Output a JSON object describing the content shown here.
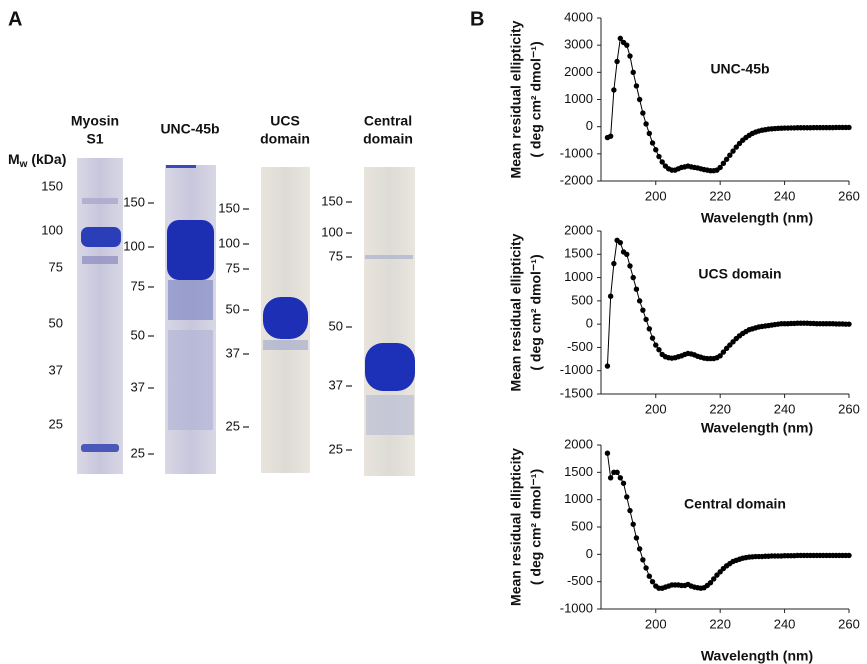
{
  "panel_a": {
    "label": "A",
    "mw_label": "M",
    "mw_sub": "w",
    "mw_unit": " (kDa)",
    "gels": [
      {
        "title": [
          "Myosin",
          "S1"
        ],
        "markers": [
          150,
          100,
          75,
          50,
          37,
          25
        ]
      },
      {
        "title": [
          "UNC-45b"
        ],
        "markers": [
          150,
          100,
          75,
          50,
          37,
          25
        ]
      },
      {
        "title": [
          "UCS",
          "domain"
        ],
        "markers": [
          150,
          100,
          75,
          50,
          37,
          25
        ]
      },
      {
        "title": [
          "Central",
          "domain"
        ],
        "markers": [
          150,
          100,
          75,
          50,
          37,
          25
        ]
      }
    ]
  },
  "panel_b": {
    "label": "B"
  },
  "chart_data": [
    {
      "type": "line",
      "xlabel": "Wavelength (nm)",
      "ylabel": [
        "Mean residual ellipticity",
        "( deg cm² dmol⁻¹)"
      ],
      "xlim": [
        183,
        260
      ],
      "xticks": [
        200,
        220,
        240,
        260
      ],
      "ylim": [
        -2000,
        4000
      ],
      "yticks": [
        -2000,
        -1000,
        0,
        1000,
        2000,
        3000,
        4000
      ],
      "markers": true,
      "x": [
        185,
        186,
        187,
        188,
        189,
        190,
        191,
        192,
        193,
        194,
        195,
        196,
        197,
        198,
        199,
        200,
        201,
        202,
        203,
        204,
        205,
        206,
        207,
        208,
        209,
        210,
        211,
        212,
        213,
        214,
        215,
        216,
        217,
        218,
        219,
        220,
        221,
        222,
        223,
        224,
        225,
        226,
        227,
        228,
        229,
        230,
        231,
        232,
        233,
        234,
        235,
        236,
        237,
        238,
        239,
        240,
        241,
        242,
        243,
        244,
        245,
        246,
        247,
        248,
        249,
        250,
        251,
        252,
        253,
        254,
        255,
        256,
        257,
        258,
        259,
        260
      ],
      "series": [
        {
          "name": "UNC-45b",
          "color": "#000000",
          "values": [
            -400,
            -350,
            1350,
            2400,
            3250,
            3100,
            3000,
            2600,
            2000,
            1500,
            1000,
            500,
            100,
            -250,
            -600,
            -850,
            -1100,
            -1300,
            -1450,
            -1550,
            -1600,
            -1600,
            -1550,
            -1500,
            -1480,
            -1450,
            -1480,
            -1500,
            -1520,
            -1550,
            -1580,
            -1600,
            -1620,
            -1620,
            -1600,
            -1500,
            -1350,
            -1200,
            -1050,
            -900,
            -750,
            -620,
            -500,
            -400,
            -320,
            -250,
            -200,
            -160,
            -130,
            -110,
            -90,
            -80,
            -70,
            -60,
            -55,
            -50,
            -50,
            -45,
            -45,
            -40,
            -40,
            -40,
            -40,
            -40,
            -35,
            -35,
            -35,
            -35,
            -35,
            -35,
            -35,
            -30,
            -30,
            -30,
            -30,
            -30
          ]
        }
      ]
    },
    {
      "type": "line",
      "xlabel": "Wavelength (nm)",
      "ylabel": [
        "Mean residual ellipticity",
        "( deg cm² dmol⁻¹)"
      ],
      "xlim": [
        183,
        260
      ],
      "xticks": [
        200,
        220,
        240,
        260
      ],
      "ylim": [
        -1500,
        2000
      ],
      "yticks": [
        -1500,
        -1000,
        -500,
        0,
        500,
        1000,
        1500,
        2000
      ],
      "markers": true,
      "x": [
        185,
        186,
        187,
        188,
        189,
        190,
        191,
        192,
        193,
        194,
        195,
        196,
        197,
        198,
        199,
        200,
        201,
        202,
        203,
        204,
        205,
        206,
        207,
        208,
        209,
        210,
        211,
        212,
        213,
        214,
        215,
        216,
        217,
        218,
        219,
        220,
        221,
        222,
        223,
        224,
        225,
        226,
        227,
        228,
        229,
        230,
        231,
        232,
        233,
        234,
        235,
        236,
        237,
        238,
        239,
        240,
        241,
        242,
        243,
        244,
        245,
        246,
        247,
        248,
        249,
        250,
        251,
        252,
        253,
        254,
        255,
        256,
        257,
        258,
        259,
        260
      ],
      "series": [
        {
          "name": "UCS domain",
          "color": "#000000",
          "values": [
            -900,
            600,
            1300,
            1800,
            1750,
            1550,
            1500,
            1250,
            1000,
            750,
            500,
            300,
            100,
            -100,
            -300,
            -450,
            -550,
            -650,
            -700,
            -720,
            -730,
            -720,
            -700,
            -680,
            -650,
            -630,
            -640,
            -660,
            -690,
            -710,
            -730,
            -740,
            -740,
            -740,
            -720,
            -680,
            -600,
            -520,
            -450,
            -380,
            -310,
            -250,
            -200,
            -160,
            -120,
            -100,
            -80,
            -60,
            -50,
            -40,
            -30,
            -20,
            -10,
            0,
            10,
            10,
            10,
            15,
            15,
            20,
            20,
            20,
            20,
            15,
            15,
            10,
            10,
            10,
            10,
            10,
            10,
            5,
            5,
            5,
            0,
            0
          ]
        }
      ]
    },
    {
      "type": "line",
      "xlabel": "Wavelength (nm)",
      "ylabel": [
        "Mean residual ellipticity",
        "( deg cm² dmol⁻¹)"
      ],
      "xlim": [
        183,
        260
      ],
      "xticks": [
        200,
        220,
        240,
        260
      ],
      "ylim": [
        -1000,
        2000
      ],
      "yticks": [
        -1000,
        -500,
        0,
        500,
        1000,
        1500,
        2000
      ],
      "markers": true,
      "x": [
        185,
        186,
        187,
        188,
        189,
        190,
        191,
        192,
        193,
        194,
        195,
        196,
        197,
        198,
        199,
        200,
        201,
        202,
        203,
        204,
        205,
        206,
        207,
        208,
        209,
        210,
        211,
        212,
        213,
        214,
        215,
        216,
        217,
        218,
        219,
        220,
        221,
        222,
        223,
        224,
        225,
        226,
        227,
        228,
        229,
        230,
        231,
        232,
        233,
        234,
        235,
        236,
        237,
        238,
        239,
        240,
        241,
        242,
        243,
        244,
        245,
        246,
        247,
        248,
        249,
        250,
        251,
        252,
        253,
        254,
        255,
        256,
        257,
        258,
        259,
        260
      ],
      "series": [
        {
          "name": "Central domain",
          "color": "#000000",
          "values": [
            1850,
            1400,
            1500,
            1500,
            1400,
            1300,
            1050,
            800,
            550,
            300,
            100,
            -100,
            -250,
            -400,
            -500,
            -580,
            -620,
            -620,
            -600,
            -580,
            -560,
            -560,
            -560,
            -570,
            -570,
            -550,
            -580,
            -600,
            -610,
            -620,
            -610,
            -570,
            -520,
            -450,
            -380,
            -320,
            -260,
            -210,
            -170,
            -130,
            -110,
            -90,
            -70,
            -60,
            -50,
            -45,
            -40,
            -40,
            -40,
            -35,
            -35,
            -30,
            -30,
            -30,
            -30,
            -25,
            -25,
            -25,
            -25,
            -20,
            -20,
            -20,
            -20,
            -20,
            -20,
            -20,
            -20,
            -20,
            -20,
            -20,
            -20,
            -20,
            -20,
            -20,
            -20,
            -20
          ]
        }
      ]
    }
  ]
}
